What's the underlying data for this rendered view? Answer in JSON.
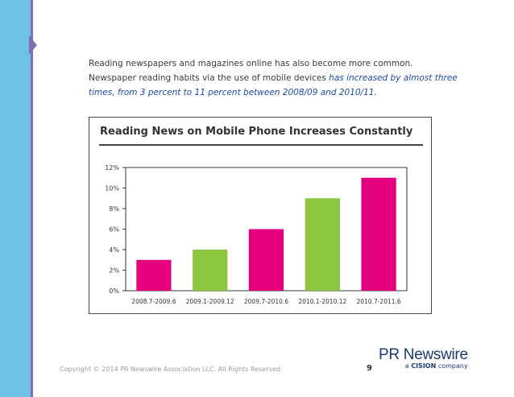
{
  "intro": {
    "text": "Reading newspapers and magazines online has also become more common. Newspaper reading habits via the use of mobile devices ",
    "highlight": "has increased by almost three times, from 3 percent to 11 percent between 2008/09 and 2010/11",
    "end": "."
  },
  "chart_data": {
    "type": "bar",
    "title": "Reading News on Mobile Phone Increases Constantly",
    "categories": [
      "2008.7-2009.6",
      "2009.1-2009.12",
      "2009.7-2010.6",
      "2010.1-2010.12",
      "2010.7-2011.6"
    ],
    "values": [
      3,
      4,
      6,
      9,
      11
    ],
    "bar_colors": [
      "#e5007e",
      "#8cc63f",
      "#e5007e",
      "#8cc63f",
      "#e5007e"
    ],
    "ylim": [
      0,
      12
    ],
    "yticks": [
      0,
      2,
      4,
      6,
      8,
      10,
      12
    ],
    "ytick_labels": [
      "0%",
      "2%",
      "4%",
      "6%",
      "8%",
      "10%",
      "12%"
    ],
    "xlabel": "",
    "ylabel": "",
    "grid": false
  },
  "footer": {
    "copyright": "Copyright © 2014 PR Newswire Association LLC. All Rights Reserved.",
    "page_number": "9",
    "logo_main": "PR Newswire",
    "logo_sub_a": "a ",
    "logo_sub_brand": "CISION",
    "logo_sub_b": " company"
  },
  "colors": {
    "sidebar": "#6ec1e4",
    "sidebar_edge": "#7a6fb0",
    "highlight_text": "#1a4a9c",
    "bar_pink": "#e5007e",
    "bar_green": "#8cc63f"
  }
}
